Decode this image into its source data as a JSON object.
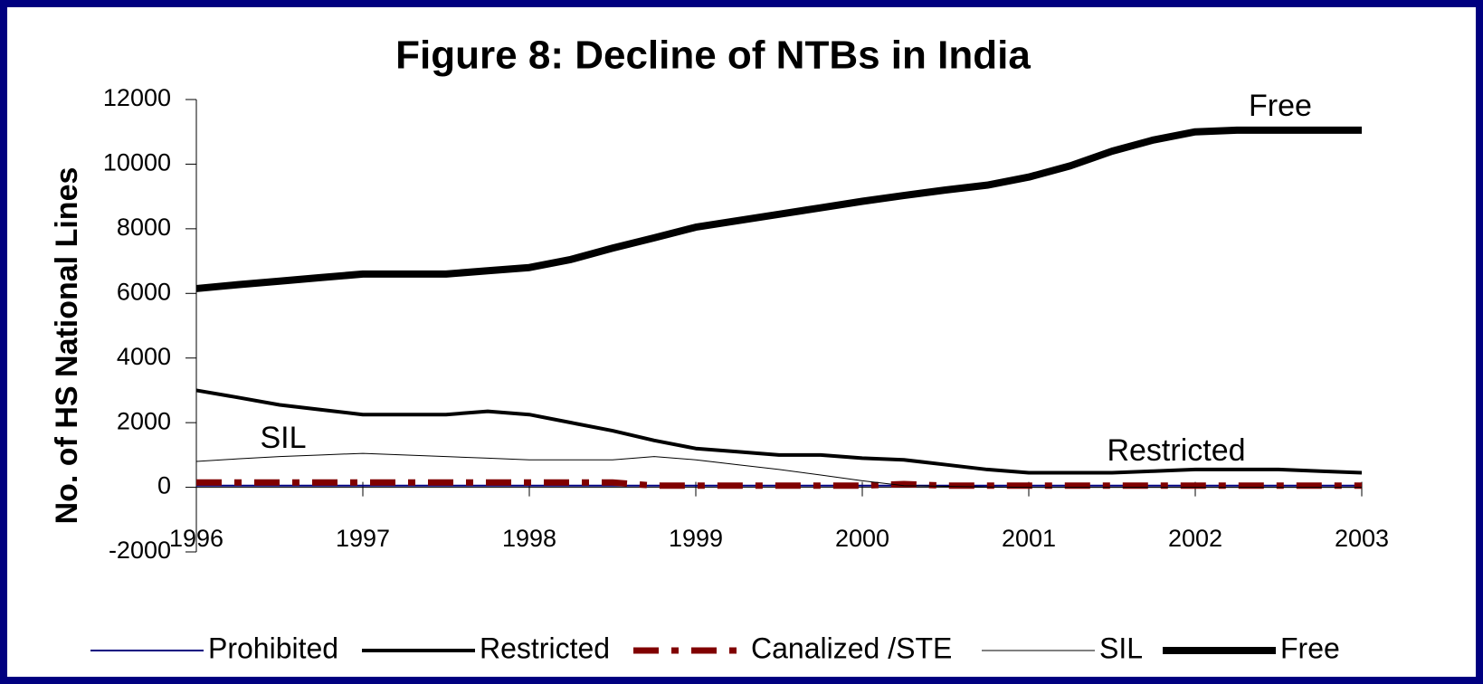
{
  "chart_data": {
    "type": "line",
    "title": "Figure 8: Decline of NTBs in India",
    "ylabel": "No. of HS National Lines",
    "x": [
      1996,
      1996.25,
      1996.5,
      1996.75,
      1997,
      1997.25,
      1997.5,
      1997.75,
      1998,
      1998.25,
      1998.5,
      1998.75,
      1999,
      1999.25,
      1999.5,
      1999.75,
      2000,
      2000.25,
      2000.5,
      2000.75,
      2001,
      2001.25,
      2001.5,
      2001.75,
      2002,
      2002.25,
      2002.5,
      2002.75,
      2003
    ],
    "xlim": [
      1996,
      2003
    ],
    "xticks": [
      1996,
      1997,
      1998,
      1999,
      2000,
      2001,
      2002,
      2003
    ],
    "ylim": [
      -2000,
      12000
    ],
    "yticks": [
      12000,
      10000,
      8000,
      6000,
      4000,
      2000,
      0,
      -2000
    ],
    "series": [
      {
        "name": "Prohibited",
        "color": "#000080",
        "values": [
          50,
          50,
          50,
          50,
          50,
          50,
          50,
          50,
          50,
          50,
          50,
          50,
          50,
          50,
          50,
          50,
          50,
          50,
          50,
          50,
          50,
          50,
          50,
          50,
          50,
          50,
          50,
          50,
          50
        ]
      },
      {
        "name": "Restricted",
        "color": "#000000",
        "values": [
          3000,
          2780,
          2550,
          2400,
          2250,
          2250,
          2250,
          2350,
          2250,
          2000,
          1750,
          1450,
          1200,
          1100,
          1000,
          1000,
          900,
          850,
          700,
          550,
          450,
          450,
          450,
          500,
          550,
          550,
          550,
          500,
          450
        ]
      },
      {
        "name": "Canalized /STE",
        "color": "#800000",
        "values": [
          150,
          150,
          150,
          150,
          150,
          150,
          150,
          150,
          150,
          150,
          150,
          50,
          50,
          50,
          50,
          50,
          50,
          100,
          50,
          50,
          50,
          50,
          50,
          50,
          50,
          50,
          50,
          50,
          50
        ]
      },
      {
        "name": "SIL",
        "color": "#000000",
        "values": [
          800,
          880,
          950,
          1000,
          1050,
          1000,
          950,
          900,
          850,
          850,
          850,
          950,
          850,
          700,
          550,
          380,
          200,
          50,
          30,
          10,
          0,
          0,
          0,
          0,
          0,
          0,
          0,
          0,
          0
        ]
      },
      {
        "name": "Free",
        "color": "#000000",
        "values": [
          6150,
          6270,
          6380,
          6490,
          6600,
          6600,
          6600,
          6700,
          6800,
          7050,
          7400,
          7720,
          8050,
          8250,
          8450,
          8650,
          8850,
          9030,
          9200,
          9350,
          9600,
          9950,
          10400,
          10750,
          11000,
          11050,
          11050,
          11050,
          11050
        ]
      }
    ],
    "annotations": [
      "Free",
      "SIL",
      "Restricted"
    ]
  }
}
